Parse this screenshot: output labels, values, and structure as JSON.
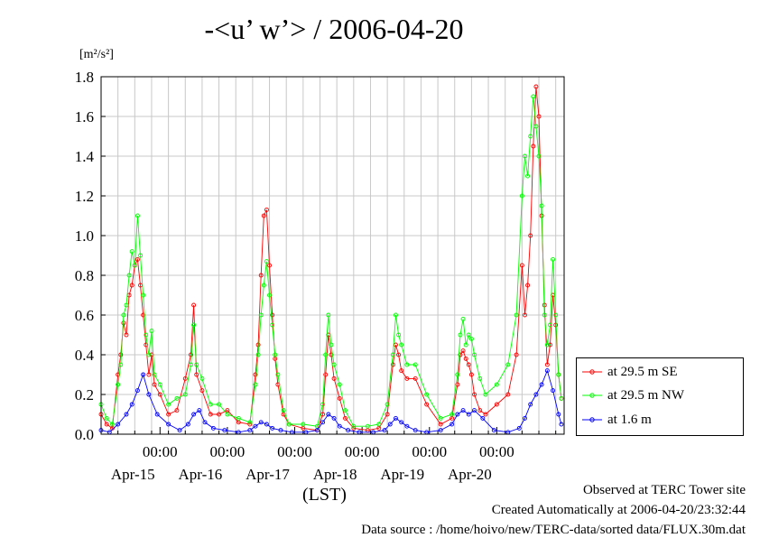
{
  "title": "-<u’ w’> / 2006-04-20",
  "unit_label": "[m²/s²]",
  "x_axis_label": "(LST)",
  "footer": {
    "observed": "Observed at TERC Tower site",
    "created": "Created Automatically at 2006-04-20/23:32:44",
    "source": "Data source : /home/hoivo/new/TERC-data/sorted  data/FLUX.30m.dat"
  },
  "colors": {
    "se": "#ff0000",
    "nw": "#00ff00",
    "low": "#0000ff",
    "grid": "#c8c8c8"
  },
  "chart_data": {
    "type": "line",
    "title": "-<u’ w’> / 2006-04-20",
    "xlabel": "(LST)",
    "ylabel": "[m²/s²]",
    "ylim": [
      0,
      1.8
    ],
    "yticks": [
      0.0,
      0.2,
      0.4,
      0.6,
      0.8,
      1.0,
      1.2,
      1.4,
      1.6,
      1.8
    ],
    "ytick_labels": [
      "0.0",
      "0.2",
      "0.4",
      "0.6",
      "0.8",
      "1.0",
      "1.2",
      "1.4",
      "1.6",
      "1.8"
    ],
    "xlim": [
      "2006-04-14 03:00",
      "2006-04-21 00:00"
    ],
    "xticks": [
      "2006-04-15 00:00",
      "2006-04-16 00:00",
      "2006-04-17 00:00",
      "2006-04-18 00:00",
      "2006-04-19 00:00",
      "2006-04-20 00:00"
    ],
    "xtick_labels": [
      "00:00",
      "00:00",
      "00:00",
      "00:00",
      "00:00",
      "00:00"
    ],
    "date_labels": [
      "Apr-15",
      "Apr-16",
      "Apr-17",
      "Apr-18",
      "Apr-19",
      "Apr-20"
    ],
    "grid": true,
    "legend_position": "right",
    "series": [
      {
        "name": "at 29.5 m SE",
        "x": [
          "2006-04-14 03:00",
          "2006-04-14 05:00",
          "2006-04-14 07:00",
          "2006-04-14 09:00",
          "2006-04-14 10:00",
          "2006-04-14 11:00",
          "2006-04-14 12:00",
          "2006-04-14 13:00",
          "2006-04-14 14:00",
          "2006-04-14 15:00",
          "2006-04-14 16:00",
          "2006-04-14 17:00",
          "2006-04-14 18:00",
          "2006-04-14 19:00",
          "2006-04-14 20:00",
          "2006-04-14 21:00",
          "2006-04-14 22:00",
          "2006-04-15 00:00",
          "2006-04-15 03:00",
          "2006-04-15 06:00",
          "2006-04-15 09:00",
          "2006-04-15 11:00",
          "2006-04-15 12:00",
          "2006-04-15 13:00",
          "2006-04-15 15:00",
          "2006-04-15 18:00",
          "2006-04-15 21:00",
          "2006-04-16 00:00",
          "2006-04-16 04:00",
          "2006-04-16 08:00",
          "2006-04-16 10:00",
          "2006-04-16 11:00",
          "2006-04-16 12:00",
          "2006-04-16 13:00",
          "2006-04-16 14:00",
          "2006-04-16 15:00",
          "2006-04-16 16:00",
          "2006-04-16 17:00",
          "2006-04-16 18:00",
          "2006-04-16 20:00",
          "2006-04-16 22:00",
          "2006-04-17 03:00",
          "2006-04-17 08:00",
          "2006-04-17 10:00",
          "2006-04-17 11:00",
          "2006-04-17 12:00",
          "2006-04-17 13:00",
          "2006-04-17 14:00",
          "2006-04-17 16:00",
          "2006-04-17 18:00",
          "2006-04-17 21:00",
          "2006-04-18 02:00",
          "2006-04-18 06:00",
          "2006-04-18 09:00",
          "2006-04-18 11:00",
          "2006-04-18 12:00",
          "2006-04-18 13:00",
          "2006-04-18 14:00",
          "2006-04-18 16:00",
          "2006-04-18 19:00",
          "2006-04-18 23:00",
          "2006-04-19 04:00",
          "2006-04-19 08:00",
          "2006-04-19 10:00",
          "2006-04-19 11:00",
          "2006-04-19 12:00",
          "2006-04-19 13:00",
          "2006-04-19 14:00",
          "2006-04-19 15:00",
          "2006-04-19 16:00",
          "2006-04-19 18:00",
          "2006-04-19 20:00",
          "2006-04-20 00:00",
          "2006-04-20 04:00",
          "2006-04-20 07:00",
          "2006-04-20 09:00",
          "2006-04-20 10:00",
          "2006-04-20 11:00",
          "2006-04-20 12:00",
          "2006-04-20 13:00",
          "2006-04-20 14:00",
          "2006-04-20 15:00",
          "2006-04-20 16:00",
          "2006-04-20 17:00",
          "2006-04-20 18:00",
          "2006-04-20 19:00",
          "2006-04-20 20:00",
          "2006-04-20 21:00",
          "2006-04-20 22:00",
          "2006-04-20 23:00"
        ],
        "y": [
          0.1,
          0.05,
          0.03,
          0.3,
          0.4,
          0.56,
          0.5,
          0.7,
          0.75,
          0.85,
          0.88,
          0.75,
          0.6,
          0.45,
          0.3,
          0.4,
          0.25,
          0.2,
          0.1,
          0.12,
          0.28,
          0.4,
          0.65,
          0.3,
          0.22,
          0.1,
          0.1,
          0.12,
          0.06,
          0.05,
          0.3,
          0.45,
          0.8,
          1.1,
          1.13,
          0.85,
          0.6,
          0.38,
          0.25,
          0.1,
          0.05,
          0.03,
          0.02,
          0.1,
          0.3,
          0.5,
          0.4,
          0.28,
          0.18,
          0.08,
          0.03,
          0.02,
          0.03,
          0.1,
          0.35,
          0.45,
          0.4,
          0.32,
          0.28,
          0.28,
          0.15,
          0.05,
          0.08,
          0.25,
          0.4,
          0.42,
          0.38,
          0.35,
          0.3,
          0.2,
          0.12,
          0.1,
          0.15,
          0.2,
          0.4,
          0.85,
          0.6,
          0.75,
          1.0,
          1.45,
          1.75,
          1.6,
          1.1,
          0.65,
          0.35,
          0.45,
          0.7,
          0.55,
          0.3,
          0.18
        ]
      },
      {
        "name": "at 29.5 m NW",
        "x": [
          "2006-04-14 03:00",
          "2006-04-14 05:00",
          "2006-04-14 07:00",
          "2006-04-14 09:00",
          "2006-04-14 10:00",
          "2006-04-14 11:00",
          "2006-04-14 12:00",
          "2006-04-14 13:00",
          "2006-04-14 14:00",
          "2006-04-14 15:00",
          "2006-04-14 16:00",
          "2006-04-14 17:00",
          "2006-04-14 18:00",
          "2006-04-14 19:00",
          "2006-04-14 20:00",
          "2006-04-14 21:00",
          "2006-04-14 22:00",
          "2006-04-15 00:00",
          "2006-04-15 03:00",
          "2006-04-15 06:00",
          "2006-04-15 09:00",
          "2006-04-15 11:00",
          "2006-04-15 12:00",
          "2006-04-15 13:00",
          "2006-04-15 15:00",
          "2006-04-15 18:00",
          "2006-04-15 21:00",
          "2006-04-16 00:00",
          "2006-04-16 04:00",
          "2006-04-16 08:00",
          "2006-04-16 10:00",
          "2006-04-16 11:00",
          "2006-04-16 12:00",
          "2006-04-16 13:00",
          "2006-04-16 14:00",
          "2006-04-16 15:00",
          "2006-04-16 16:00",
          "2006-04-16 17:00",
          "2006-04-16 18:00",
          "2006-04-16 20:00",
          "2006-04-16 22:00",
          "2006-04-17 03:00",
          "2006-04-17 08:00",
          "2006-04-17 10:00",
          "2006-04-17 11:00",
          "2006-04-17 12:00",
          "2006-04-17 13:00",
          "2006-04-17 14:00",
          "2006-04-17 16:00",
          "2006-04-17 18:00",
          "2006-04-17 21:00",
          "2006-04-18 02:00",
          "2006-04-18 06:00",
          "2006-04-18 09:00",
          "2006-04-18 11:00",
          "2006-04-18 12:00",
          "2006-04-18 13:00",
          "2006-04-18 14:00",
          "2006-04-18 16:00",
          "2006-04-18 19:00",
          "2006-04-18 23:00",
          "2006-04-19 04:00",
          "2006-04-19 08:00",
          "2006-04-19 10:00",
          "2006-04-19 11:00",
          "2006-04-19 12:00",
          "2006-04-19 13:00",
          "2006-04-19 14:00",
          "2006-04-19 15:00",
          "2006-04-19 16:00",
          "2006-04-19 18:00",
          "2006-04-19 20:00",
          "2006-04-20 00:00",
          "2006-04-20 04:00",
          "2006-04-20 07:00",
          "2006-04-20 09:00",
          "2006-04-20 10:00",
          "2006-04-20 11:00",
          "2006-04-20 12:00",
          "2006-04-20 13:00",
          "2006-04-20 14:00",
          "2006-04-20 15:00",
          "2006-04-20 16:00",
          "2006-04-20 17:00",
          "2006-04-20 18:00",
          "2006-04-20 19:00",
          "2006-04-20 20:00",
          "2006-04-20 21:00",
          "2006-04-20 22:00",
          "2006-04-20 23:00"
        ],
        "y": [
          0.15,
          0.08,
          0.05,
          0.25,
          0.35,
          0.6,
          0.65,
          0.8,
          0.92,
          0.85,
          1.1,
          0.9,
          0.7,
          0.5,
          0.4,
          0.52,
          0.3,
          0.25,
          0.15,
          0.18,
          0.2,
          0.35,
          0.55,
          0.35,
          0.28,
          0.15,
          0.15,
          0.1,
          0.08,
          0.06,
          0.25,
          0.4,
          0.6,
          0.75,
          0.87,
          0.7,
          0.55,
          0.4,
          0.3,
          0.12,
          0.05,
          0.05,
          0.04,
          0.15,
          0.4,
          0.6,
          0.45,
          0.35,
          0.25,
          0.12,
          0.04,
          0.04,
          0.05,
          0.15,
          0.4,
          0.6,
          0.5,
          0.45,
          0.35,
          0.35,
          0.2,
          0.08,
          0.1,
          0.3,
          0.5,
          0.58,
          0.45,
          0.5,
          0.48,
          0.4,
          0.28,
          0.2,
          0.25,
          0.35,
          0.6,
          1.2,
          1.4,
          1.3,
          1.5,
          1.7,
          1.55,
          1.4,
          1.15,
          0.6,
          0.45,
          0.55,
          0.88,
          0.6,
          0.3,
          0.18
        ]
      },
      {
        "name": "at 1.6 m",
        "x": [
          "2006-04-14 03:00",
          "2006-04-14 06:00",
          "2006-04-14 09:00",
          "2006-04-14 12:00",
          "2006-04-14 14:00",
          "2006-04-14 16:00",
          "2006-04-14 18:00",
          "2006-04-14 20:00",
          "2006-04-14 23:00",
          "2006-04-15 03:00",
          "2006-04-15 07:00",
          "2006-04-15 10:00",
          "2006-04-15 12:00",
          "2006-04-15 14:00",
          "2006-04-15 16:00",
          "2006-04-15 19:00",
          "2006-04-15 23:00",
          "2006-04-16 04:00",
          "2006-04-16 08:00",
          "2006-04-16 10:00",
          "2006-04-16 12:00",
          "2006-04-16 14:00",
          "2006-04-16 16:00",
          "2006-04-16 19:00",
          "2006-04-16 23:00",
          "2006-04-17 04:00",
          "2006-04-17 08:00",
          "2006-04-17 10:00",
          "2006-04-17 12:00",
          "2006-04-17 14:00",
          "2006-04-17 16:00",
          "2006-04-17 19:00",
          "2006-04-17 23:00",
          "2006-04-18 04:00",
          "2006-04-18 08:00",
          "2006-04-18 10:00",
          "2006-04-18 12:00",
          "2006-04-18 14:00",
          "2006-04-18 16:00",
          "2006-04-18 19:00",
          "2006-04-18 23:00",
          "2006-04-19 04:00",
          "2006-04-19 08:00",
          "2006-04-19 10:00",
          "2006-04-19 12:00",
          "2006-04-19 14:00",
          "2006-04-19 16:00",
          "2006-04-19 19:00",
          "2006-04-19 23:00",
          "2006-04-20 04:00",
          "2006-04-20 08:00",
          "2006-04-20 10:00",
          "2006-04-20 12:00",
          "2006-04-20 14:00",
          "2006-04-20 16:00",
          "2006-04-20 18:00",
          "2006-04-20 20:00",
          "2006-04-20 22:00",
          "2006-04-20 23:00"
        ],
        "y": [
          0.02,
          0.01,
          0.05,
          0.1,
          0.15,
          0.22,
          0.3,
          0.2,
          0.1,
          0.05,
          0.02,
          0.05,
          0.1,
          0.12,
          0.06,
          0.03,
          0.02,
          0.01,
          0.02,
          0.04,
          0.06,
          0.05,
          0.03,
          0.02,
          0.01,
          0.01,
          0.02,
          0.06,
          0.1,
          0.08,
          0.04,
          0.02,
          0.01,
          0.01,
          0.02,
          0.05,
          0.08,
          0.06,
          0.04,
          0.02,
          0.01,
          0.02,
          0.05,
          0.1,
          0.12,
          0.1,
          0.12,
          0.08,
          0.02,
          0.01,
          0.03,
          0.08,
          0.15,
          0.2,
          0.25,
          0.32,
          0.22,
          0.1,
          0.05
        ]
      }
    ]
  },
  "legend": [
    {
      "label": "at 29.5 m SE",
      "color": "#ff0000"
    },
    {
      "label": "at 29.5 m NW",
      "color": "#00ff00"
    },
    {
      "label": "at 1.6 m",
      "color": "#0000ff"
    }
  ]
}
